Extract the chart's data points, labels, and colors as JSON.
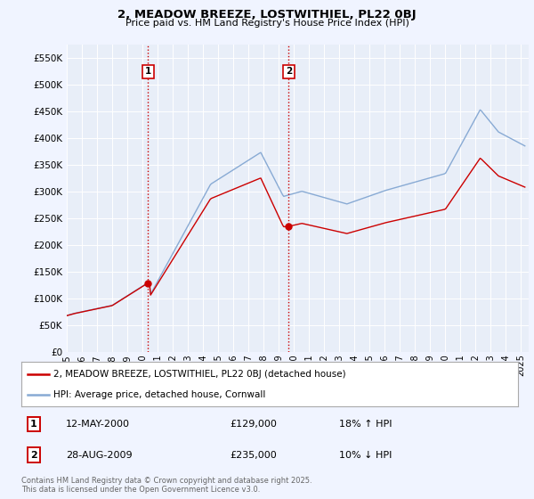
{
  "title": "2, MEADOW BREEZE, LOSTWITHIEL, PL22 0BJ",
  "subtitle": "Price paid vs. HM Land Registry's House Price Index (HPI)",
  "background_color": "#f0f4ff",
  "plot_bg_color": "#e8eef8",
  "ylim": [
    0,
    575000
  ],
  "yticks": [
    0,
    50000,
    100000,
    150000,
    200000,
    250000,
    300000,
    350000,
    400000,
    450000,
    500000,
    550000
  ],
  "sale1_date_label": "12-MAY-2000",
  "sale1_price": 129000,
  "sale1_pct": "18% ↑ HPI",
  "sale1_x": 2000.37,
  "sale2_date_label": "28-AUG-2009",
  "sale2_price": 235000,
  "sale2_pct": "10% ↓ HPI",
  "sale2_x": 2009.65,
  "legend_label1": "2, MEADOW BREEZE, LOSTWITHIEL, PL22 0BJ (detached house)",
  "legend_label2": "HPI: Average price, detached house, Cornwall",
  "footer": "Contains HM Land Registry data © Crown copyright and database right 2025.\nThis data is licensed under the Open Government Licence v3.0.",
  "line1_color": "#cc0000",
  "line2_color": "#88aad4",
  "vline_color": "#cc0000",
  "dot_color": "#cc0000",
  "xlim_start": 1995.0,
  "xlim_end": 2025.5
}
